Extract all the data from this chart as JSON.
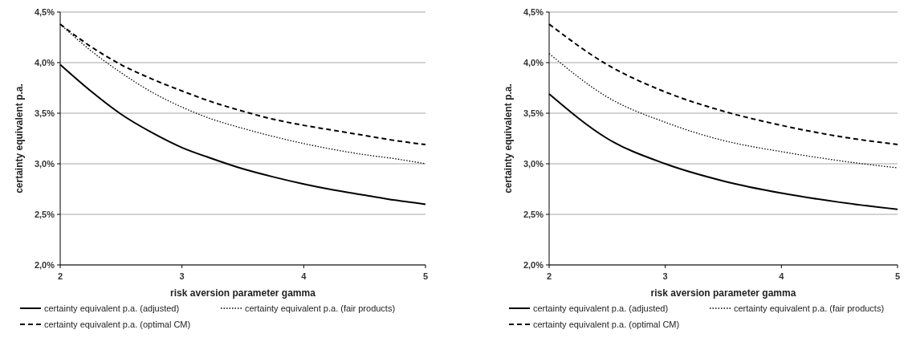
{
  "chart_data": [
    {
      "type": "line",
      "xlabel": "risk aversion parameter gamma",
      "ylabel": "certainty equivalent p.a.",
      "x": [
        2,
        2.25,
        2.5,
        2.75,
        3,
        3.25,
        3.5,
        3.75,
        4,
        4.25,
        4.5,
        4.75,
        5
      ],
      "xlim": [
        2,
        5
      ],
      "xticks": [
        2,
        3,
        4,
        5
      ],
      "ylim": [
        2.0,
        4.5
      ],
      "yticks": [
        {
          "value": 2.0,
          "label": "2,0%"
        },
        {
          "value": 2.5,
          "label": "2,5%"
        },
        {
          "value": 3.0,
          "label": "3,0%"
        },
        {
          "value": 3.5,
          "label": "3,5%"
        },
        {
          "value": 4.0,
          "label": "4,0%"
        },
        {
          "value": 4.5,
          "label": "4,5%"
        }
      ],
      "grid": "y",
      "legend": "bottom",
      "series": [
        {
          "name": "certainty equivalent p.a. (adjusted)",
          "color": "#000000",
          "line_style": "solid",
          "values": [
            3.98,
            3.72,
            3.49,
            3.31,
            3.16,
            3.05,
            2.95,
            2.87,
            2.8,
            2.74,
            2.69,
            2.64,
            2.6
          ]
        },
        {
          "name": "certainty equivalent p.a. (fair products)",
          "color": "#000000",
          "line_style": "dotted",
          "values": [
            4.38,
            4.12,
            3.9,
            3.71,
            3.56,
            3.44,
            3.35,
            3.27,
            3.2,
            3.14,
            3.09,
            3.05,
            3.0
          ]
        },
        {
          "name": "certainty equivalent p.a. (optimal CM)",
          "color": "#000000",
          "line_style": "dashed",
          "values": [
            4.38,
            4.16,
            3.98,
            3.84,
            3.72,
            3.61,
            3.52,
            3.44,
            3.38,
            3.33,
            3.28,
            3.23,
            3.19
          ]
        }
      ]
    },
    {
      "type": "line",
      "xlabel": "risk aversion parameter gamma",
      "ylabel": "certainty equivalent p.a.",
      "x": [
        2,
        2.5,
        3,
        3.5,
        4,
        4.5,
        5
      ],
      "xlim": [
        2,
        5
      ],
      "xticks": [
        2,
        3,
        4,
        5
      ],
      "ylim": [
        2.0,
        4.5
      ],
      "yticks": [
        {
          "value": 2.0,
          "label": "2,0%"
        },
        {
          "value": 2.5,
          "label": "2,5%"
        },
        {
          "value": 3.0,
          "label": "3,0%"
        },
        {
          "value": 3.5,
          "label": "3,5%"
        },
        {
          "value": 4.0,
          "label": "4,0%"
        },
        {
          "value": 4.5,
          "label": "4,5%"
        }
      ],
      "grid": "y",
      "legend": "bottom",
      "series": [
        {
          "name": "certainty equivalent p.a. (adjusted)",
          "color": "#000000",
          "line_style": "solid",
          "values": [
            3.69,
            3.25,
            3.0,
            2.83,
            2.71,
            2.62,
            2.55
          ]
        },
        {
          "name": "certainty equivalent p.a. (fair products)",
          "color": "#000000",
          "line_style": "dotted",
          "values": [
            4.09,
            3.66,
            3.41,
            3.23,
            3.12,
            3.03,
            2.96
          ]
        },
        {
          "name": "certainty equivalent p.a. (optimal CM)",
          "color": "#000000",
          "line_style": "dashed",
          "values": [
            4.38,
            3.98,
            3.71,
            3.52,
            3.38,
            3.27,
            3.19
          ]
        }
      ]
    }
  ]
}
